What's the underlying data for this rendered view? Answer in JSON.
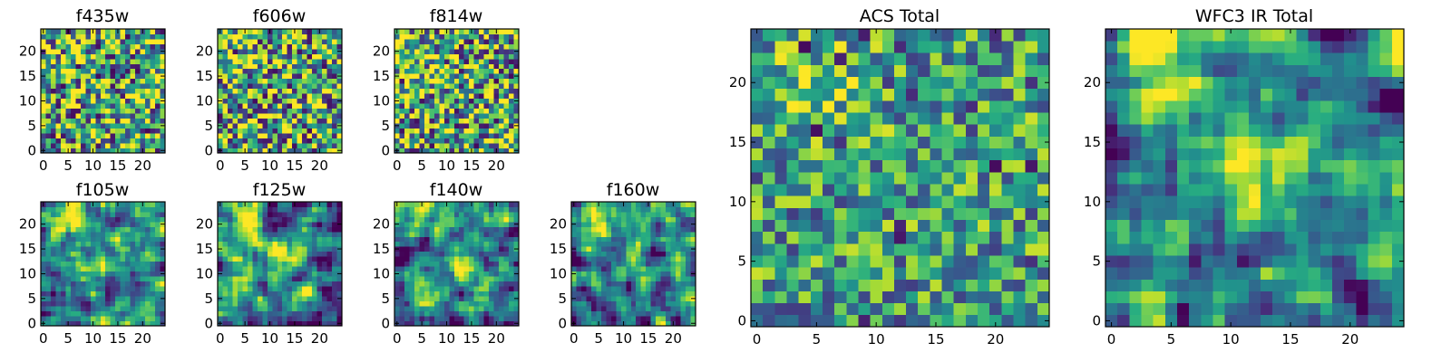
{
  "chart_data": {
    "type": "heatmap",
    "colormap": "viridis",
    "value_range": [
      0,
      1
    ],
    "panels": [
      {
        "id": "f435w",
        "title": "f435w",
        "size": 25,
        "xticks": [
          0,
          5,
          10,
          15,
          20
        ],
        "yticks": [
          0,
          5,
          10,
          15,
          20
        ],
        "style": "noise",
        "seed": 11,
        "blobs": []
      },
      {
        "id": "f606w",
        "title": "f606w",
        "size": 25,
        "xticks": [
          0,
          5,
          10,
          15,
          20
        ],
        "yticks": [
          0,
          5,
          10,
          15,
          20
        ],
        "style": "noise",
        "seed": 23,
        "blobs": [
          [
            5,
            20,
            3,
            0.15
          ]
        ]
      },
      {
        "id": "f814w",
        "title": "f814w",
        "size": 25,
        "xticks": [
          0,
          5,
          10,
          15,
          20
        ],
        "yticks": [
          0,
          5,
          10,
          15,
          20
        ],
        "style": "noise",
        "seed": 37,
        "blobs": [
          [
            5,
            20,
            3,
            0.2
          ]
        ]
      },
      {
        "id": "f105w",
        "title": "f105w",
        "size": 25,
        "xticks": [
          0,
          5,
          10,
          15,
          20
        ],
        "yticks": [
          0,
          5,
          10,
          15,
          20
        ],
        "style": "smooth",
        "seed": 41,
        "blobs": [
          [
            5,
            21,
            3,
            0.4
          ],
          [
            12,
            13,
            3,
            0.3
          ]
        ]
      },
      {
        "id": "f125w",
        "title": "f125w",
        "size": 25,
        "xticks": [
          0,
          5,
          10,
          15,
          20
        ],
        "yticks": [
          0,
          5,
          10,
          15,
          20
        ],
        "style": "smooth",
        "seed": 53,
        "blobs": [
          [
            5,
            21,
            3,
            0.4
          ],
          [
            13,
            13,
            2.5,
            0.4
          ]
        ]
      },
      {
        "id": "f140w",
        "title": "f140w",
        "size": 25,
        "xticks": [
          0,
          5,
          10,
          15,
          20
        ],
        "yticks": [
          0,
          5,
          10,
          15,
          20
        ],
        "style": "smooth",
        "seed": 67,
        "blobs": [
          [
            5,
            21,
            3,
            0.4
          ],
          [
            13,
            12,
            2.5,
            0.35
          ]
        ]
      },
      {
        "id": "f160w",
        "title": "f160w",
        "size": 25,
        "xticks": [
          0,
          5,
          10,
          15,
          20
        ],
        "yticks": [
          0,
          5,
          10,
          15,
          20
        ],
        "style": "smooth",
        "seed": 79,
        "blobs": [
          [
            5,
            21,
            3,
            0.4
          ],
          [
            12,
            13,
            2.5,
            0.3
          ]
        ]
      },
      {
        "id": "acs_total",
        "title": "ACS Total",
        "size": 25,
        "xticks": [
          0,
          5,
          10,
          15,
          20
        ],
        "yticks": [
          0,
          5,
          10,
          15,
          20
        ],
        "style": "noise-bright",
        "seed": 97,
        "blobs": [
          [
            6,
            20,
            3,
            0.2
          ]
        ]
      },
      {
        "id": "wfc3_ir_total",
        "title": "WFC3 IR Total",
        "size": 25,
        "xticks": [
          0,
          5,
          10,
          15,
          20
        ],
        "yticks": [
          0,
          5,
          10,
          15,
          20
        ],
        "style": "smooth",
        "seed": 113,
        "blobs": [
          [
            5,
            22,
            3.2,
            0.5
          ],
          [
            12,
            13,
            2.6,
            0.4
          ]
        ]
      }
    ]
  }
}
